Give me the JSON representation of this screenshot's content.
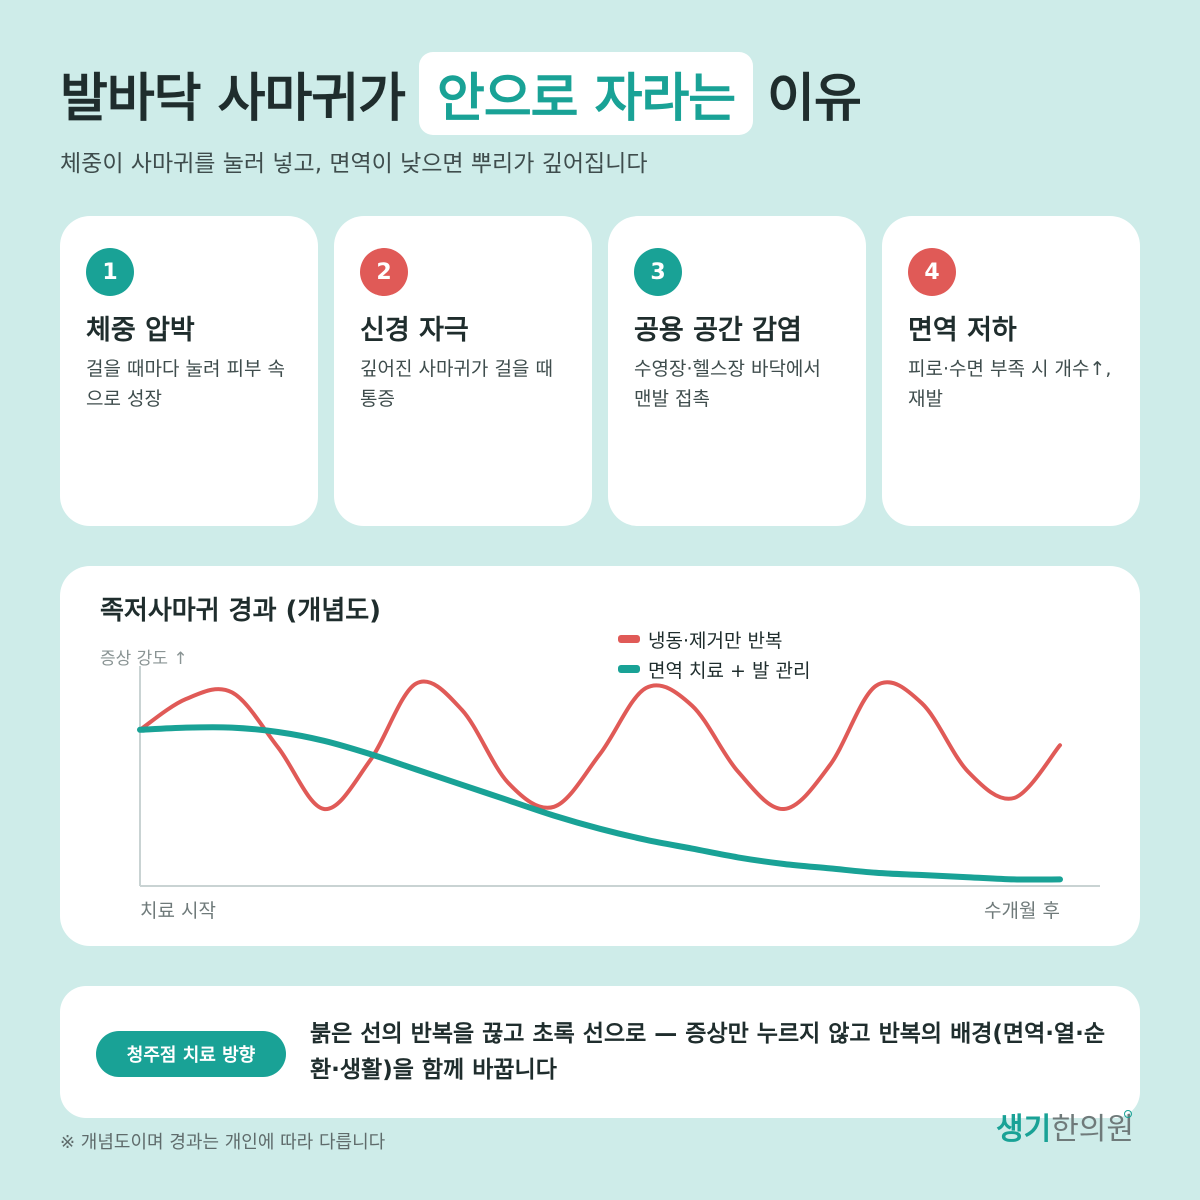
{
  "title": {
    "before": "발바닥 사마귀가",
    "highlight": "안으로 자라는",
    "after": "이유"
  },
  "subtitle": "체중이 사마귀를 눌러 넣고, 면역이 낮으면 뿌리가 깊어집니다",
  "colors": {
    "background": "#ceece9",
    "teal": "#19a296",
    "red": "#e05a57",
    "text": "#1f2d2d"
  },
  "cards": [
    {
      "number": "1",
      "title": "체중 압박",
      "desc": "걸을 때마다 눌려 피부 속으로 성장",
      "color": "#19a296"
    },
    {
      "number": "2",
      "title": "신경 자극",
      "desc": "깊어진 사마귀가 걸을 때 통증",
      "color": "#e05a57"
    },
    {
      "number": "3",
      "title": "공용 공간 감염",
      "desc": "수영장·헬스장 바닥에서 맨발 접촉",
      "color": "#19a296"
    },
    {
      "number": "4",
      "title": "면역 저하",
      "desc": "피로·수면 부족 시 개수↑, 재발",
      "color": "#e05a57"
    }
  ],
  "chart": {
    "title": "족저사마귀 경과 (개념도)",
    "y_label": "증상 강도 ↑",
    "x_start": "치료 시작",
    "x_end": "수개월 후",
    "legend": [
      {
        "label": "냉동·제거만 반복",
        "color": "#e05a57"
      },
      {
        "label": "면역 치료 + 발 관리",
        "color": "#19a296"
      }
    ]
  },
  "chart_data": {
    "type": "line",
    "title": "족저사마귀 경과 (개념도)",
    "ylabel": "증상 강도 ↑",
    "xlabel": "",
    "x_tick_labels": [
      "치료 시작",
      "수개월 후"
    ],
    "x": [
      0,
      0.05,
      0.1,
      0.15,
      0.2,
      0.25,
      0.3,
      0.35,
      0.4,
      0.45,
      0.5,
      0.55,
      0.6,
      0.65,
      0.7,
      0.75,
      0.8,
      0.85,
      0.9,
      0.95,
      1.0
    ],
    "xlim": [
      0,
      1
    ],
    "ylim": [
      0,
      1
    ],
    "grid": false,
    "legend_position": "top-right",
    "series": [
      {
        "name": "냉동·제거만 반복",
        "color": "#e05a57",
        "values": [
          0.71,
          0.85,
          0.88,
          0.63,
          0.35,
          0.57,
          0.92,
          0.8,
          0.47,
          0.36,
          0.6,
          0.9,
          0.82,
          0.52,
          0.35,
          0.55,
          0.91,
          0.83,
          0.52,
          0.4,
          0.64
        ]
      },
      {
        "name": "면역 치료 + 발 관리",
        "color": "#19a296",
        "values": [
          0.71,
          0.72,
          0.72,
          0.7,
          0.66,
          0.6,
          0.53,
          0.46,
          0.39,
          0.32,
          0.26,
          0.21,
          0.17,
          0.13,
          0.1,
          0.08,
          0.06,
          0.05,
          0.04,
          0.03,
          0.03
        ]
      }
    ]
  },
  "bottom": {
    "pill": "청주점 치료 방향",
    "text": "붉은 선의 반복을 끊고 초록 선으로 — 증상만 누르지 않고 반복의 배경(면역·열·순환·생활)을 함께 바꿉니다"
  },
  "footnote": "※ 개념도이며 경과는 개인에 따라 다릅니다",
  "logo": {
    "part1": "생기",
    "part2": "한의원"
  }
}
